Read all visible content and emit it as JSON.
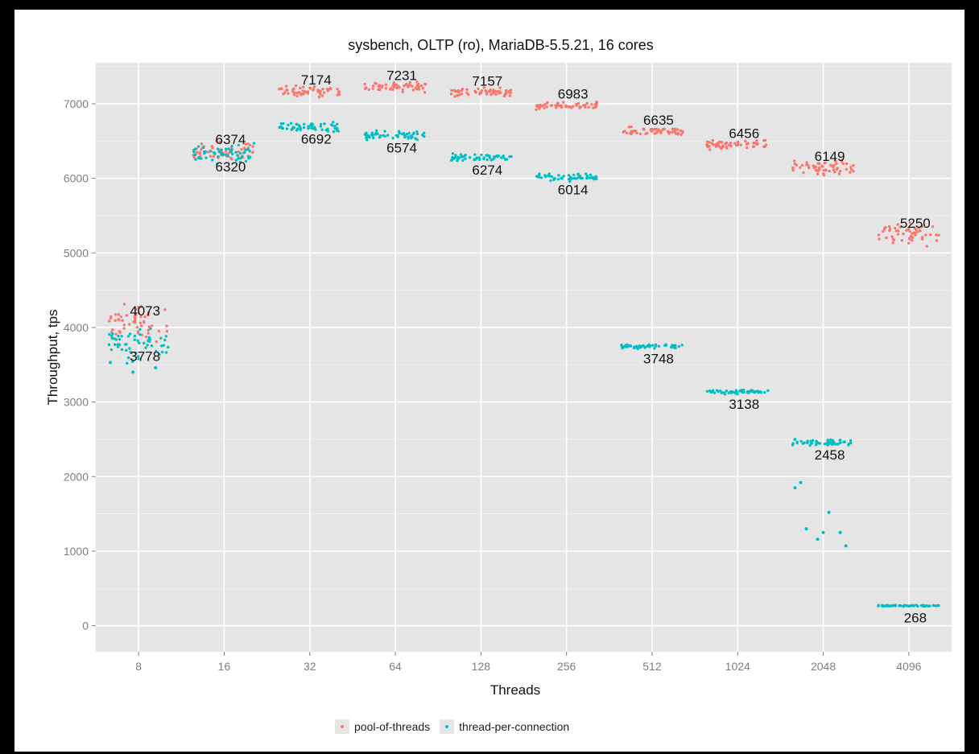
{
  "chart_data": {
    "type": "scatter",
    "title": "sysbench, OLTP (ro), MariaDB-5.5.21, 16 cores",
    "xlabel": "Threads",
    "ylabel": "Throughput, tps",
    "categories": [
      "8",
      "16",
      "32",
      "64",
      "128",
      "256",
      "512",
      "1024",
      "2048",
      "4096"
    ],
    "y_ticks": [
      "0",
      "1000",
      "2000",
      "3000",
      "4000",
      "5000",
      "6000",
      "7000"
    ],
    "ylim": [
      -350,
      7550
    ],
    "grid": true,
    "legend_position": "bottom",
    "series": [
      {
        "name": "pool-of-threads",
        "color": "#f8766d",
        "values": [
          4073,
          6374,
          7174,
          7231,
          7157,
          6983,
          6635,
          6456,
          6149,
          5250
        ],
        "labels": [
          "4073",
          "6374",
          "7174",
          "7231",
          "7157",
          "6983",
          "6635",
          "6456",
          "6149",
          "5250"
        ]
      },
      {
        "name": "thread-per-connection",
        "color": "#00bfc4",
        "values": [
          3778,
          6320,
          6692,
          6574,
          6274,
          6014,
          3748,
          3138,
          2458,
          268
        ],
        "labels": [
          "3778",
          "6320",
          "6692",
          "6574",
          "6274",
          "6014",
          "3748",
          "3138",
          "2458",
          "268"
        ]
      }
    ],
    "outliers": [
      {
        "series": "thread-per-connection",
        "category": "8",
        "values": [
          3530,
          3400,
          3460
        ]
      },
      {
        "series": "thread-per-connection",
        "category": "2048",
        "values": [
          1850,
          1160,
          1250,
          1920,
          1250,
          1070,
          1300,
          1520
        ]
      }
    ]
  }
}
